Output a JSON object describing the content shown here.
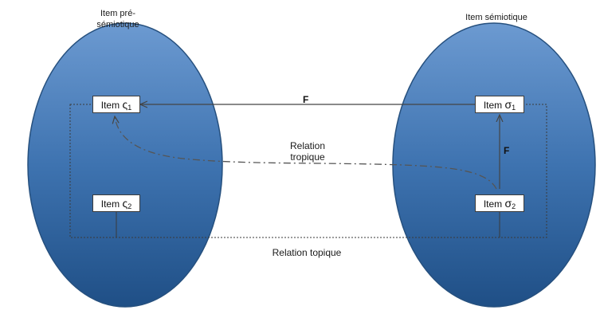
{
  "labels": {
    "left_set": "Item pré-sémiotique",
    "left_set_line1": "Item pré-",
    "left_set_line2": "sémiotique",
    "right_set": "Item sémiotique",
    "tropique_line1": "Relation",
    "tropique_line2": "tropique",
    "topique": "Relation topique",
    "f_horizontal": "F",
    "f_vertical": "F"
  },
  "items": {
    "left_top": {
      "prefix": "Item",
      "symbol": "ς",
      "index": "1"
    },
    "left_bottom": {
      "prefix": "Item",
      "symbol": "ς",
      "index": "2"
    },
    "right_top": {
      "prefix": "Item",
      "symbol": "σ",
      "index": "1"
    },
    "right_bottom": {
      "prefix": "Item",
      "symbol": "σ",
      "index": "2"
    }
  },
  "colors": {
    "ellipse_light": "#5a8fcb",
    "ellipse_dark": "#1f4f86",
    "ellipse_stroke": "#26507e",
    "line": "#444444"
  }
}
